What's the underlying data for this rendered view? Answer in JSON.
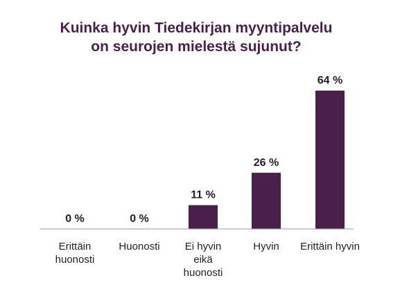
{
  "chart_data": {
    "type": "bar",
    "title_lines": [
      "Kuinka hyvin Tiedekirjan myyntipalvelu",
      "on seurojen mielestä sujunut?"
    ],
    "categories": [
      "Erittäin huonosti",
      "Huonosti",
      "Ei hyvin eikä huonosti",
      "Hyvin",
      "Erittäin hyvin"
    ],
    "category_label_lines": [
      [
        "Erittäin",
        "huonosti"
      ],
      [
        "Huonosti"
      ],
      [
        "Ei hyvin",
        "eikä",
        "huonosti"
      ],
      [
        "Hyvin"
      ],
      [
        "Erittäin hyvin"
      ]
    ],
    "values": [
      0,
      0,
      11,
      26,
      64
    ],
    "value_labels": [
      "0 %",
      "0 %",
      "11 %",
      "26 %",
      "64 %"
    ],
    "unit": "%",
    "ylim": [
      0,
      64
    ],
    "grid": false,
    "legend": "none",
    "colors": {
      "bar": "#4a1f4b",
      "title": "#4a1f4b",
      "value_label": "#2a1a2a",
      "category_label": "#222222",
      "baseline": "#999999"
    }
  }
}
